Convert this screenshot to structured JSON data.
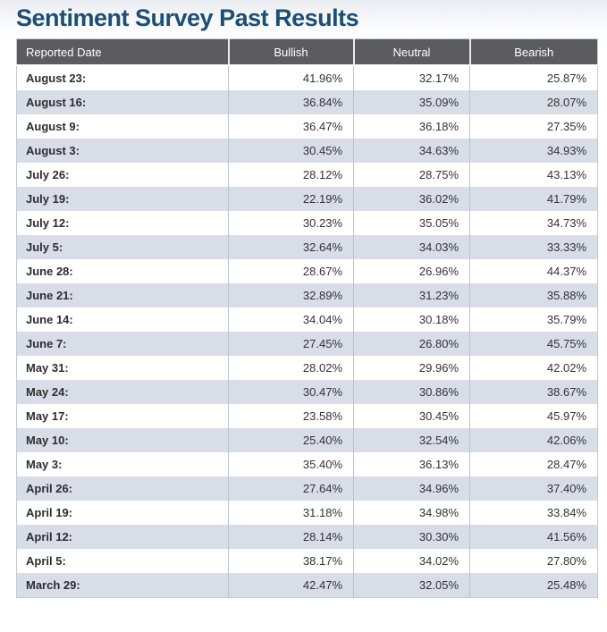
{
  "page": {
    "title": "Sentiment Survey Past Results"
  },
  "colors": {
    "title_text": "#1d4e74",
    "header_bg": "#5c5c5e",
    "header_text": "#ffffff",
    "row_bg": "#ffffff",
    "row_alt_bg": "#d8dde8",
    "divider": "#b9c3d0"
  },
  "table": {
    "columns": [
      "Reported Date",
      "Bullish",
      "Neutral",
      "Bearish"
    ],
    "rows": [
      {
        "date": "August 23:",
        "bullish": "41.96%",
        "neutral": "32.17%",
        "bearish": "25.87%"
      },
      {
        "date": "August 16:",
        "bullish": "36.84%",
        "neutral": "35.09%",
        "bearish": "28.07%"
      },
      {
        "date": "August 9:",
        "bullish": "36.47%",
        "neutral": "36.18%",
        "bearish": "27.35%"
      },
      {
        "date": "August 3:",
        "bullish": "30.45%",
        "neutral": "34.63%",
        "bearish": "34.93%"
      },
      {
        "date": "July 26:",
        "bullish": "28.12%",
        "neutral": "28.75%",
        "bearish": "43.13%"
      },
      {
        "date": "July 19:",
        "bullish": "22.19%",
        "neutral": "36.02%",
        "bearish": "41.79%"
      },
      {
        "date": "July 12:",
        "bullish": "30.23%",
        "neutral": "35.05%",
        "bearish": "34.73%"
      },
      {
        "date": "July 5:",
        "bullish": "32.64%",
        "neutral": "34.03%",
        "bearish": "33.33%"
      },
      {
        "date": "June 28:",
        "bullish": "28.67%",
        "neutral": "26.96%",
        "bearish": "44.37%"
      },
      {
        "date": "June 21:",
        "bullish": "32.89%",
        "neutral": "31.23%",
        "bearish": "35.88%"
      },
      {
        "date": "June 14:",
        "bullish": "34.04%",
        "neutral": "30.18%",
        "bearish": "35.79%"
      },
      {
        "date": "June 7:",
        "bullish": "27.45%",
        "neutral": "26.80%",
        "bearish": "45.75%"
      },
      {
        "date": "May 31:",
        "bullish": "28.02%",
        "neutral": "29.96%",
        "bearish": "42.02%"
      },
      {
        "date": "May 24:",
        "bullish": "30.47%",
        "neutral": "30.86%",
        "bearish": "38.67%"
      },
      {
        "date": "May 17:",
        "bullish": "23.58%",
        "neutral": "30.45%",
        "bearish": "45.97%"
      },
      {
        "date": "May 10:",
        "bullish": "25.40%",
        "neutral": "32.54%",
        "bearish": "42.06%"
      },
      {
        "date": "May 3:",
        "bullish": "35.40%",
        "neutral": "36.13%",
        "bearish": "28.47%"
      },
      {
        "date": "April 26:",
        "bullish": "27.64%",
        "neutral": "34.96%",
        "bearish": "37.40%"
      },
      {
        "date": "April 19:",
        "bullish": "31.18%",
        "neutral": "34.98%",
        "bearish": "33.84%"
      },
      {
        "date": "April 12:",
        "bullish": "28.14%",
        "neutral": "30.30%",
        "bearish": "41.56%"
      },
      {
        "date": "April 5:",
        "bullish": "38.17%",
        "neutral": "34.02%",
        "bearish": "27.80%"
      },
      {
        "date": "March 29:",
        "bullish": "42.47%",
        "neutral": "32.05%",
        "bearish": "25.48%"
      }
    ]
  }
}
